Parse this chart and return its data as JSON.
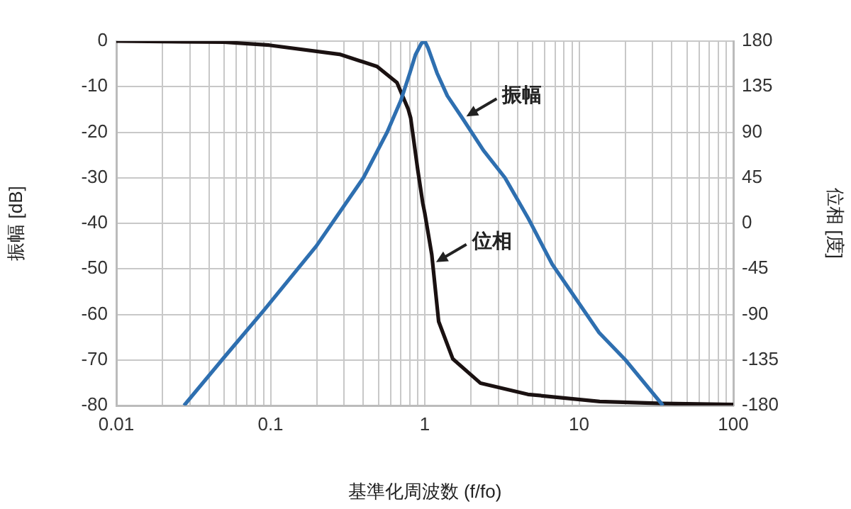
{
  "chart_data": {
    "type": "line",
    "xlabel": "基準化周波数 (f/fo)",
    "ylabel": "振幅 [dB]",
    "y2label": "位相 [度]",
    "log": "x",
    "grid": true,
    "legend": false,
    "marker": "none",
    "line_style": "solid",
    "xlim": [
      0.01,
      100
    ],
    "xticks": [
      0.01,
      {
        "value": 0.02,
        "label": null
      },
      {
        "value": 0.03,
        "label": null
      },
      {
        "value": 0.04,
        "label": null
      },
      {
        "value": 0.05,
        "label": null
      },
      {
        "value": 0.06,
        "label": null
      },
      {
        "value": 0.07,
        "label": null
      },
      {
        "value": 0.08,
        "label": null
      },
      {
        "value": 0.09,
        "label": null
      },
      0.1,
      {
        "value": 0.2,
        "label": null
      },
      {
        "value": 0.3,
        "label": null
      },
      {
        "value": 0.4,
        "label": null
      },
      {
        "value": 0.5,
        "label": null
      },
      {
        "value": 0.6,
        "label": null
      },
      {
        "value": 0.7,
        "label": null
      },
      {
        "value": 0.8,
        "label": null
      },
      {
        "value": 0.9,
        "label": null
      },
      1,
      {
        "value": 2,
        "label": null
      },
      {
        "value": 3,
        "label": null
      },
      {
        "value": 4,
        "label": null
      },
      {
        "value": 5,
        "label": null
      },
      {
        "value": 6,
        "label": null
      },
      {
        "value": 7,
        "label": null
      },
      {
        "value": 8,
        "label": null
      },
      {
        "value": 9,
        "label": null
      },
      10,
      {
        "value": 20,
        "label": null
      },
      {
        "value": 30,
        "label": null
      },
      {
        "value": 40,
        "label": null
      },
      {
        "value": 50,
        "label": null
      },
      {
        "value": 60,
        "label": null
      },
      {
        "value": 70,
        "label": null
      },
      {
        "value": 80,
        "label": null
      },
      {
        "value": 90,
        "label": null
      },
      100
    ],
    "ylim": [
      -80,
      0
    ],
    "yticks": [
      -80,
      -70,
      -60,
      -50,
      -40,
      -30,
      -20,
      -10,
      0
    ],
    "y2lim": [
      -180,
      180
    ],
    "y2ticks": [
      -180,
      -135,
      -90,
      -45,
      0,
      45,
      90,
      135,
      180
    ],
    "series": [
      {
        "color": "#2e6fb0",
        "x": [
          0.0275,
          0.0484,
          0.091,
          0.198,
          0.4,
          0.57,
          0.7,
          0.8,
          0.87,
          0.95,
          1,
          1.05,
          1.2,
          1.4,
          1.76,
          2.4,
          3.31,
          4.7,
          6.7,
          13.5,
          20,
          35
        ],
        "values": [
          -80,
          -70,
          -59,
          -45,
          -30,
          -20,
          -13,
          -7,
          -3,
          -0.5,
          0,
          -1.5,
          -7,
          -12,
          -17,
          -24,
          -30,
          -39,
          -49,
          -64,
          -70,
          -80
        ]
      },
      {
        "color": "#1a1111",
        "axis": "y2",
        "x": [
          0.01,
          0.05,
          0.098,
          0.28,
          0.49,
          0.66,
          0.78,
          0.81,
          0.9,
          0.97,
          1,
          1.11,
          1.23,
          1.52,
          2.3,
          4.66,
          13.6,
          35,
          100
        ],
        "values": [
          180,
          179,
          176,
          167,
          155,
          139,
          113,
          104,
          53,
          20,
          10,
          -31,
          -97,
          -134,
          -158,
          -169,
          -176,
          -178,
          -179
        ]
      }
    ],
    "annotations": [
      {
        "text": "振幅",
        "x": 1.76,
        "y": -17
      },
      {
        "text": "位相",
        "x": 1.12,
        "y": -49
      }
    ]
  }
}
